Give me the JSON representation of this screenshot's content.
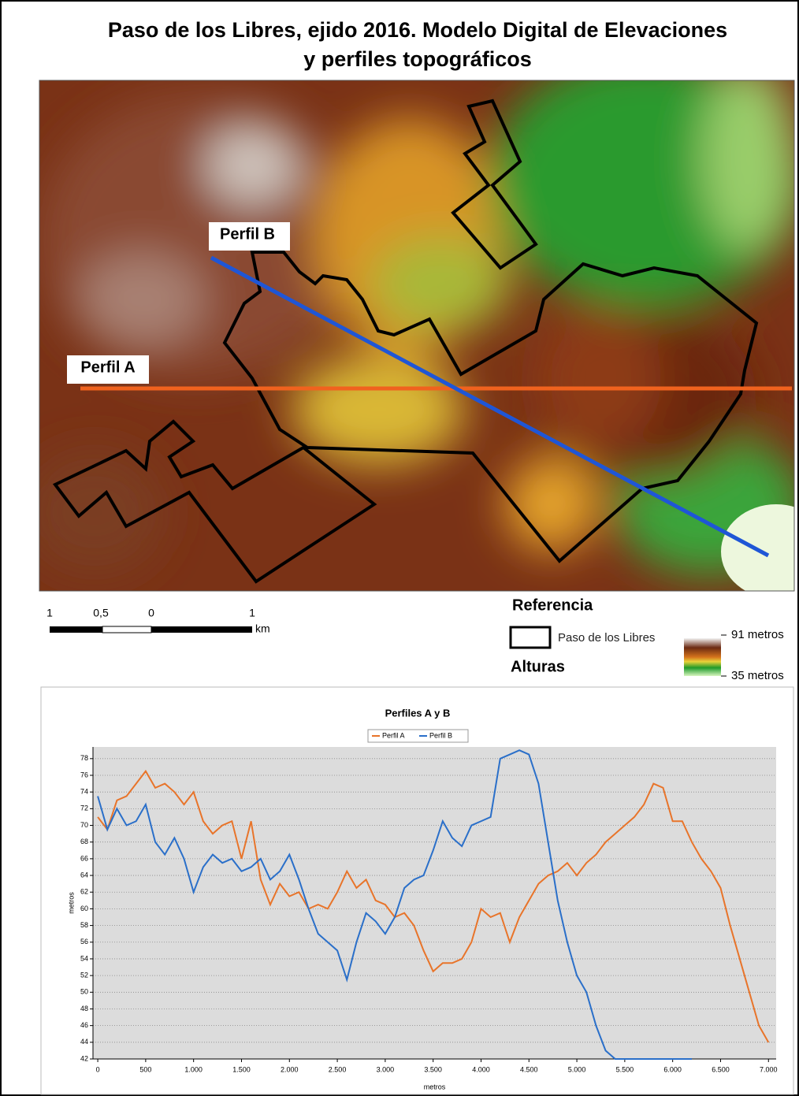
{
  "title": [
    "Paso de los Libres, ejido 2016. Modelo Digital de Elevaciones",
    "y perfiles topográficos"
  ],
  "map": {
    "labels": [
      "Perfil B",
      "Perfil A"
    ]
  },
  "scale_bar": {
    "labels": [
      "1",
      "0,5",
      "0",
      "1"
    ],
    "unit": "km"
  },
  "legend": {
    "title": "Referencia",
    "boundary": "Paso de los Libres",
    "heights_title": "Alturas",
    "max": "91 metros",
    "min": "35 metros"
  },
  "chart_data": {
    "type": "line",
    "title": "Perfiles A y B",
    "xlabel": "metros",
    "ylabel": "metros",
    "xlim": [
      -50,
      7080
    ],
    "ylim": [
      42,
      79.4
    ],
    "grid": true,
    "xticks": [
      0,
      500,
      {
        "value": 1000,
        "label": "1.000"
      },
      {
        "value": 1500,
        "label": "1.500"
      },
      {
        "value": 2000,
        "label": "2.000"
      },
      {
        "value": 2500,
        "label": "2.500"
      },
      {
        "value": 3000,
        "label": "3.000"
      },
      {
        "value": 3500,
        "label": "3.500"
      },
      {
        "value": 4000,
        "label": "4.000"
      },
      {
        "value": 4500,
        "label": "4.500"
      },
      {
        "value": 5000,
        "label": "5.000"
      },
      {
        "value": 5500,
        "label": "5.500"
      },
      {
        "value": 6000,
        "label": "6.000"
      },
      {
        "value": 6500,
        "label": "6.500"
      },
      {
        "value": 7000,
        "label": "7.000"
      }
    ],
    "yticks": [
      42,
      44,
      46,
      48,
      50,
      52,
      54,
      56,
      58,
      60,
      62,
      64,
      66,
      68,
      70,
      72,
      74,
      76,
      78
    ],
    "series": [
      {
        "name": "Perfil A",
        "color": "#e8742a",
        "x": [
          0,
          100,
          200,
          300,
          400,
          500,
          600,
          700,
          800,
          900,
          1000,
          1100,
          1200,
          1300,
          1400,
          1500,
          1600,
          1700,
          1800,
          1900,
          2000,
          2100,
          2200,
          2300,
          2400,
          2500,
          2600,
          2700,
          2800,
          2900,
          3000,
          3100,
          3200,
          3300,
          3400,
          3500,
          3600,
          3700,
          3800,
          3900,
          4000,
          4100,
          4200,
          4300,
          4400,
          4500,
          4600,
          4700,
          4800,
          4900,
          5000,
          5100,
          5200,
          5300,
          5400,
          5500,
          5600,
          5700,
          5800,
          5900,
          6000,
          6100,
          6200,
          6300,
          6400,
          6500,
          6600,
          6700,
          6800,
          6900,
          7000
        ],
        "values": [
          71,
          69.5,
          73,
          73.5,
          75,
          76.5,
          74.5,
          75,
          74,
          72.5,
          74,
          70.5,
          69,
          70,
          70.5,
          66,
          70.5,
          63.5,
          60.5,
          63,
          61.5,
          62,
          60,
          60.5,
          60,
          62,
          64.5,
          62.5,
          63.5,
          61,
          60.5,
          59,
          59.5,
          58,
          55,
          52.5,
          53.5,
          53.5,
          54,
          56,
          60,
          59,
          59.5,
          56,
          59,
          61,
          63,
          64,
          64.5,
          65.5,
          64,
          65.5,
          66.5,
          68,
          69,
          70,
          71,
          72.5,
          75,
          74.5,
          70.5,
          70.5,
          68,
          66,
          64.5,
          62.5,
          58,
          54,
          50,
          46,
          44
        ]
      },
      {
        "name": "Perfil B",
        "color": "#2a6fc9",
        "x": [
          0,
          100,
          200,
          300,
          400,
          500,
          600,
          700,
          800,
          900,
          1000,
          1100,
          1200,
          1300,
          1400,
          1500,
          1600,
          1700,
          1800,
          1900,
          2000,
          2100,
          2200,
          2300,
          2400,
          2500,
          2600,
          2700,
          2800,
          2900,
          3000,
          3100,
          3200,
          3300,
          3400,
          3500,
          3600,
          3700,
          3800,
          3900,
          4000,
          4100,
          4200,
          4300,
          4400,
          4500,
          4600,
          4700,
          4800,
          4900,
          5000,
          5100,
          5200,
          5300,
          5400,
          5500,
          5600,
          5700,
          5800,
          5900,
          6000,
          6100,
          6200
        ],
        "values": [
          73.5,
          69.5,
          72,
          70,
          70.5,
          72.5,
          68,
          66.5,
          68.5,
          66,
          62,
          65,
          66.5,
          65.5,
          66,
          64.5,
          65,
          66,
          63.5,
          64.5,
          66.5,
          63.5,
          60,
          57,
          56,
          55,
          51.5,
          56,
          59.5,
          58.5,
          57,
          59,
          62.5,
          63.5,
          64,
          67,
          70.5,
          68.5,
          67.5,
          70,
          70.5,
          71,
          78,
          78.5,
          79,
          78.5,
          75,
          68,
          61,
          56,
          52,
          50,
          46,
          43,
          42,
          42,
          42,
          42,
          42,
          42,
          42,
          42,
          42
        ]
      }
    ]
  }
}
